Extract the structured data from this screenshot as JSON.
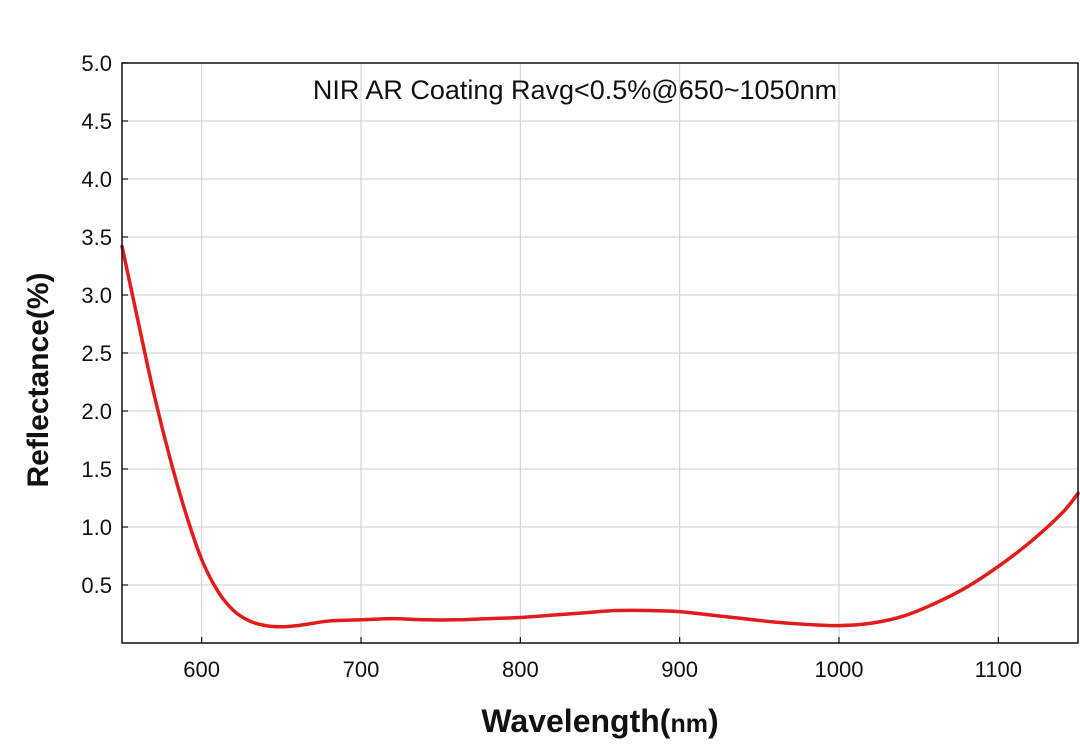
{
  "chart_data": {
    "type": "line",
    "title": "NIR AR Coating Ravg<0.5%@650~1050nm",
    "xlabel_main": "Wavelength(",
    "xlabel_unit": "nm",
    "xlabel_close": ")",
    "ylabel": "Reflectance(%)",
    "xlim": [
      550,
      1150
    ],
    "ylim": [
      0,
      5.0
    ],
    "x_ticks": [
      600,
      700,
      800,
      900,
      1000,
      1100
    ],
    "y_ticks": [
      "0.5",
      "1.0",
      "1.5",
      "2.0",
      "2.5",
      "3.0",
      "3.5",
      "4.0",
      "4.5",
      "5.0"
    ],
    "grid": true,
    "series": [
      {
        "color": "#e31b1b",
        "x": [
          550,
          560,
          570,
          580,
          590,
          600,
          610,
          620,
          630,
          640,
          650,
          660,
          670,
          680,
          700,
          720,
          740,
          760,
          780,
          800,
          820,
          840,
          860,
          880,
          900,
          920,
          940,
          960,
          980,
          1000,
          1020,
          1040,
          1060,
          1080,
          1100,
          1120,
          1140,
          1150
        ],
        "y": [
          3.42,
          2.78,
          2.15,
          1.6,
          1.12,
          0.72,
          0.45,
          0.28,
          0.19,
          0.15,
          0.14,
          0.15,
          0.17,
          0.19,
          0.2,
          0.21,
          0.2,
          0.2,
          0.21,
          0.22,
          0.24,
          0.26,
          0.28,
          0.28,
          0.27,
          0.24,
          0.21,
          0.18,
          0.16,
          0.15,
          0.17,
          0.23,
          0.34,
          0.48,
          0.66,
          0.87,
          1.12,
          1.29
        ]
      }
    ]
  }
}
